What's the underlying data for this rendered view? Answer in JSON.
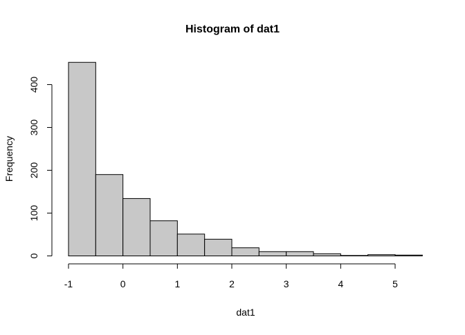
{
  "chart_data": {
    "type": "bar",
    "title": "Histogram of dat1",
    "xlabel": "dat1",
    "ylabel": "Frequency",
    "bin_edges": [
      -1,
      -0.5,
      0,
      0.5,
      1,
      1.5,
      2,
      2.5,
      3,
      3.5,
      4,
      4.5,
      5,
      5.5
    ],
    "values": [
      452,
      190,
      134,
      82,
      51,
      39,
      19,
      10,
      10,
      5,
      1,
      3,
      2
    ],
    "xticks": [
      -1,
      0,
      1,
      2,
      3,
      4,
      5
    ],
    "yticks": [
      0,
      100,
      200,
      300,
      400
    ],
    "xlim": [
      -1,
      5.5
    ],
    "ylim": [
      0,
      452
    ],
    "grid": false,
    "bar_fill": "#c8c8c8",
    "bar_stroke": "#000000"
  }
}
